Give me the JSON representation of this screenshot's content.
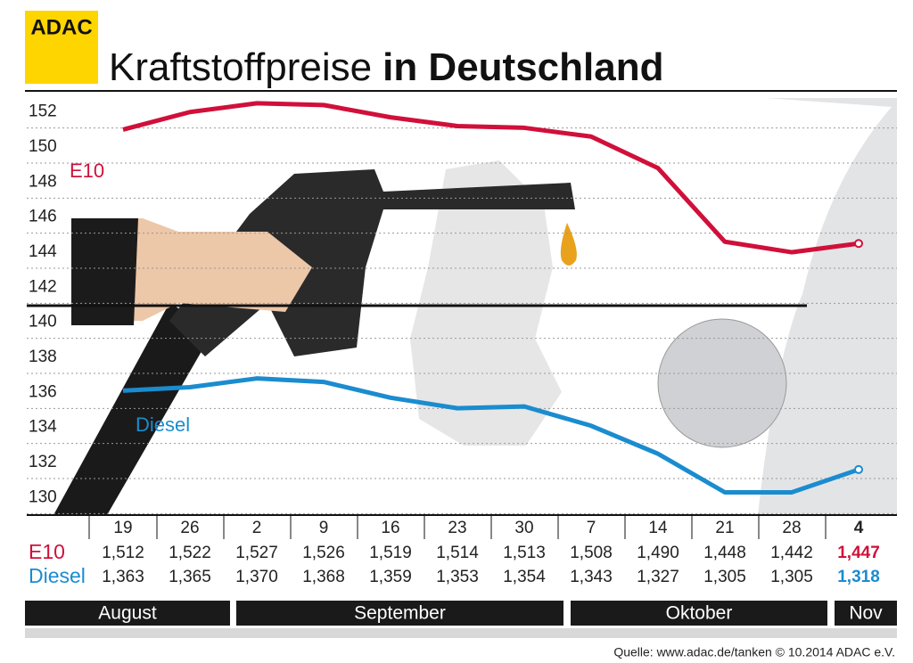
{
  "chart_data": {
    "type": "line",
    "logo": "ADAC",
    "title": [
      "Kraftstoffpreise",
      "in Deutschland"
    ],
    "categories": [
      "19",
      "26",
      "2",
      "9",
      "16",
      "23",
      "30",
      "7",
      "14",
      "21",
      "28",
      "4"
    ],
    "months": [
      "August",
      "September",
      "Oktober",
      "Nov"
    ],
    "series": [
      {
        "name": "E10",
        "color": "#d0103a",
        "values": [
          151.2,
          152.2,
          152.7,
          152.6,
          151.9,
          151.4,
          151.3,
          150.8,
          149.0,
          144.8,
          144.2,
          144.7
        ],
        "value_labels": [
          "1,512",
          "1,522",
          "1,527",
          "1,526",
          "1,519",
          "1,514",
          "1,513",
          "1,508",
          "1,490",
          "1,448",
          "1,442",
          "1,447"
        ]
      },
      {
        "name": "Diesel",
        "color": "#1a8ccf",
        "values": [
          136.3,
          136.5,
          137.0,
          136.8,
          135.9,
          135.3,
          135.4,
          134.3,
          132.7,
          130.5,
          130.5,
          131.8
        ],
        "value_labels": [
          "1,363",
          "1,365",
          "1,370",
          "1,368",
          "1,359",
          "1,353",
          "1,354",
          "1,343",
          "1,327",
          "1,305",
          "1,305",
          "1,318"
        ]
      }
    ],
    "ylim": [
      129,
      153
    ],
    "yticks": [
      130,
      132,
      134,
      136,
      138,
      140,
      142,
      144,
      146,
      148,
      150,
      152
    ],
    "grid": true,
    "source": "Quelle: www.adac.de/tanken  © 10.2014  ADAC e.V."
  }
}
